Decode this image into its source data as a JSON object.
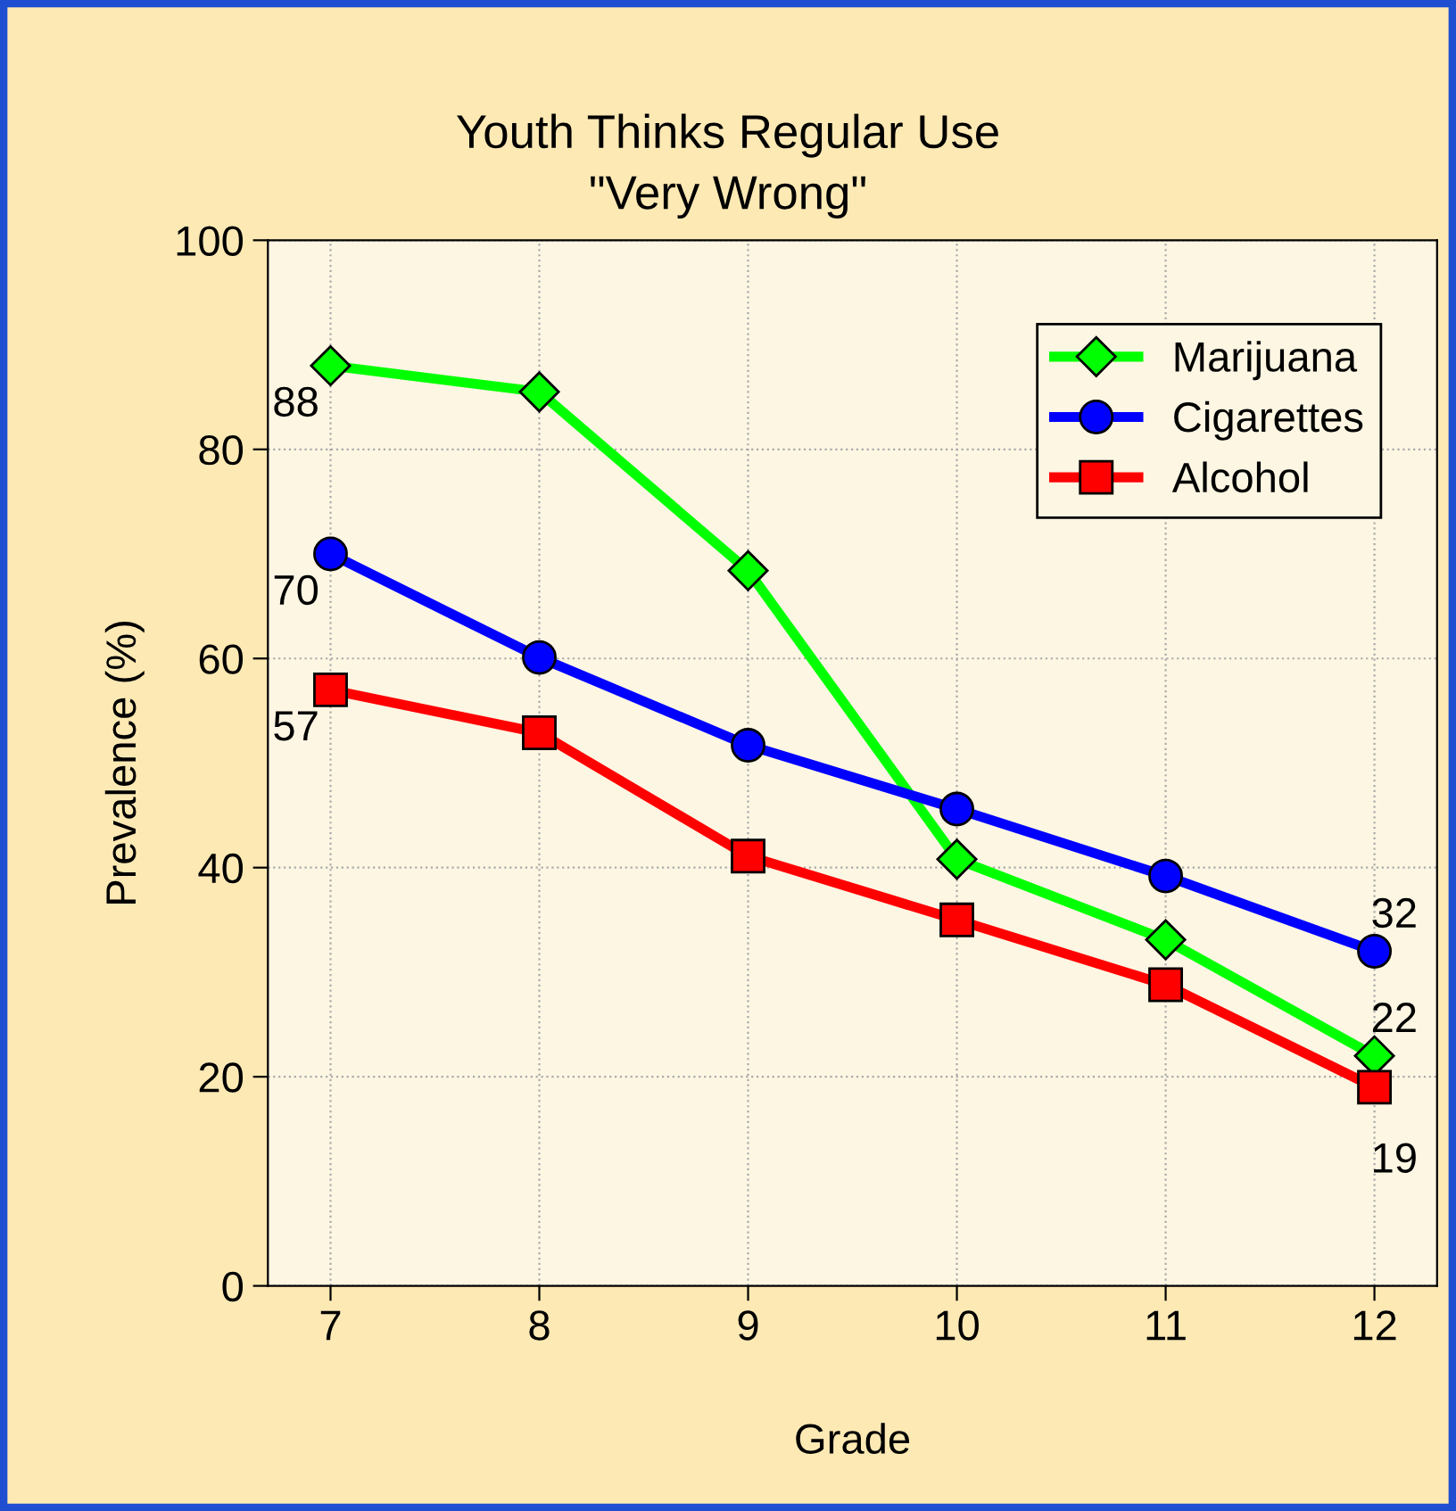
{
  "chart_data": {
    "type": "line",
    "title": "Youth Thinks Regular Use\n\"Very Wrong\"",
    "xlabel": "Grade",
    "ylabel": "Prevalence (%)",
    "x": [
      7,
      8,
      9,
      10,
      11,
      12
    ],
    "series": [
      {
        "name": "Marijuana",
        "color": "#00ff00",
        "marker": "diamond",
        "values": [
          88,
          85.5,
          68.4,
          40.8,
          33.1,
          22
        ],
        "value_labels": [
          "88",
          null,
          null,
          null,
          null,
          "22"
        ]
      },
      {
        "name": "Cigarettes",
        "color": "#0000ff",
        "marker": "circle",
        "values": [
          70,
          60.1,
          51.7,
          45.6,
          39.2,
          32
        ],
        "value_labels": [
          "70",
          null,
          null,
          null,
          null,
          "32"
        ]
      },
      {
        "name": "Alcohol",
        "color": "#ff0000",
        "marker": "square",
        "values": [
          57,
          52.9,
          41.1,
          35,
          28.8,
          19
        ],
        "value_labels": [
          "57",
          null,
          null,
          null,
          null,
          "19"
        ]
      }
    ],
    "xlim": [
      6.7,
      12.3
    ],
    "xticks": [
      7,
      8,
      9,
      10,
      11,
      12
    ],
    "ylim": [
      0,
      100
    ],
    "yticks": [
      0,
      20,
      40,
      60,
      80,
      100
    ],
    "grid": true,
    "legend": "top right",
    "line_style": "solid"
  }
}
